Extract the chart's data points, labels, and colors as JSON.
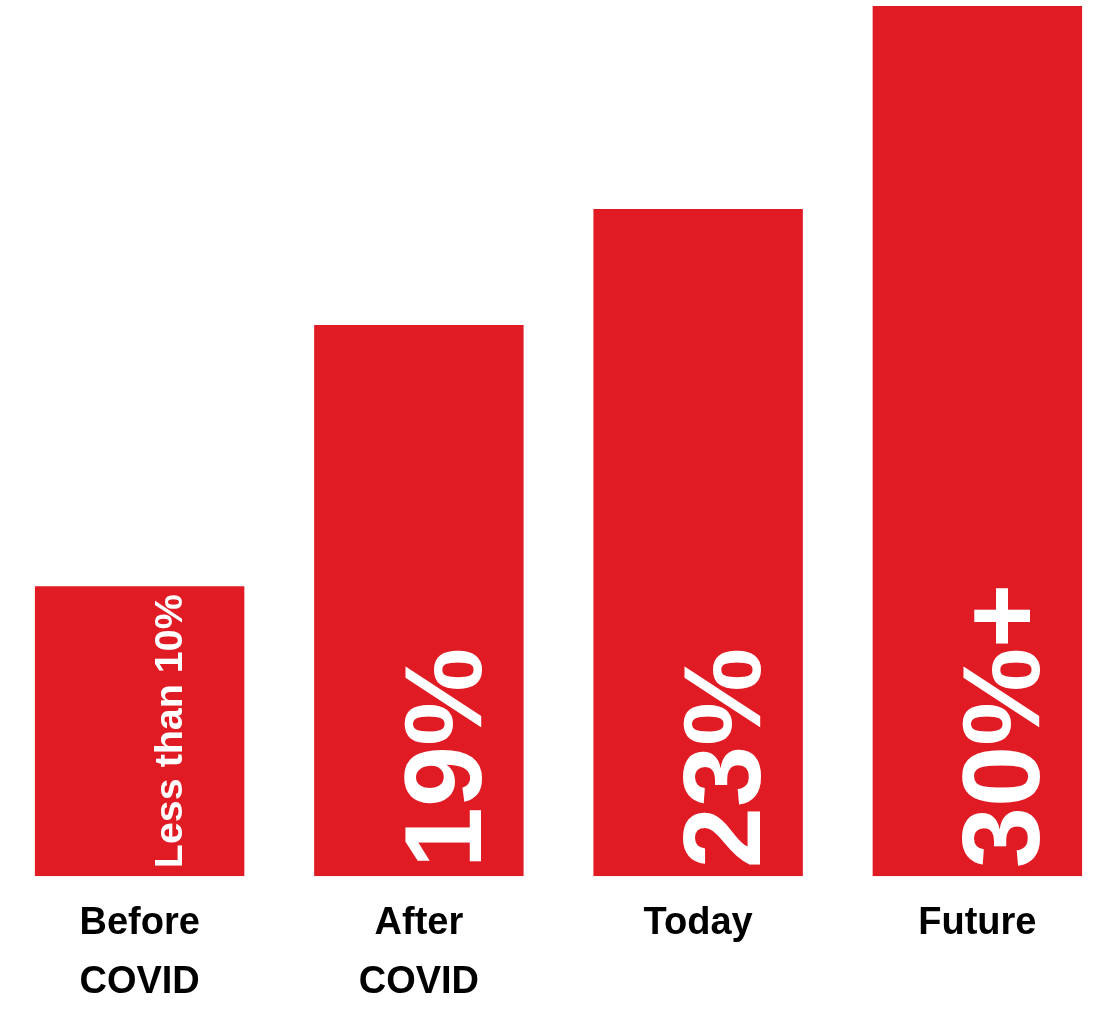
{
  "chart_data": {
    "type": "bar",
    "categories": [
      "Before COVID",
      "After COVID",
      "Today",
      "Future"
    ],
    "values": [
      10,
      19,
      23,
      30
    ],
    "value_labels": [
      "Less than 10%",
      "19%",
      "23%",
      "30%+"
    ],
    "color": "#e01b24",
    "ylim": [
      0,
      30
    ],
    "grid": false,
    "legend": false
  }
}
